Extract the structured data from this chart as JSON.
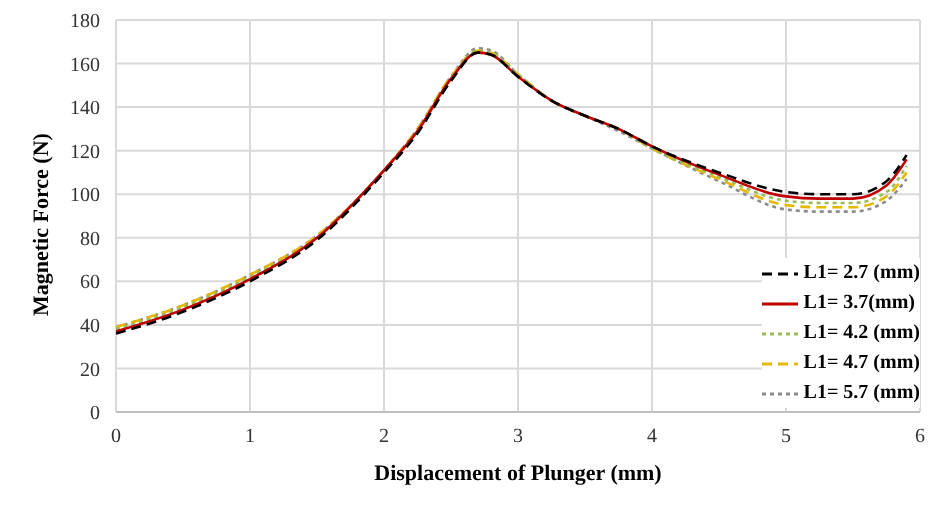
{
  "chart_data": {
    "type": "line",
    "xlabel": "Displacement of Plunger (mm)",
    "ylabel": "Magnetic Force (N)",
    "x": [
      0,
      0.5,
      1,
      1.5,
      2,
      2.25,
      2.5,
      2.7,
      2.8,
      3,
      3.25,
      3.5,
      3.75,
      4,
      4.5,
      5,
      5.25,
      5.5,
      5.75,
      5.9
    ],
    "xlim": [
      0,
      6
    ],
    "xticks": [
      0,
      1,
      2,
      3,
      4,
      5,
      6
    ],
    "ylim": [
      0,
      180
    ],
    "yticks": [
      0,
      20,
      40,
      60,
      80,
      100,
      120,
      140,
      160,
      180
    ],
    "grid": true,
    "legend": "bottom right",
    "marker": "none",
    "series": [
      {
        "name": "L1= 2.7 (mm)",
        "color": "#000000",
        "line_style": "dashed",
        "values": [
          36,
          46,
          60,
          79,
          110,
          128,
          152,
          165,
          164,
          154,
          143,
          136,
          130,
          122,
          110,
          101,
          100,
          100,
          106,
          118
        ]
      },
      {
        "name": "L1= 3.7(mm)",
        "color": "#c00000",
        "line_style": "solid",
        "values": [
          37,
          47,
          61,
          80,
          111,
          129,
          153,
          165,
          164,
          154,
          143,
          136,
          130,
          122,
          109,
          99,
          98,
          98,
          104,
          116
        ]
      },
      {
        "name": "L1= 4.2 (mm)",
        "color": "#9bbb59",
        "line_style": "dotted",
        "values": [
          38,
          48,
          62,
          80,
          111,
          129,
          153,
          166,
          165,
          155,
          143,
          136,
          130,
          121,
          108,
          97,
          96,
          96,
          101,
          113
        ]
      },
      {
        "name": "L1= 4.7 (mm)",
        "color": "#e6b800",
        "line_style": "dashed",
        "values": [
          39,
          49,
          63,
          81,
          111,
          130,
          154,
          166,
          165,
          155,
          143,
          136,
          130,
          121,
          107,
          95,
          94,
          94,
          99,
          110
        ]
      },
      {
        "name": "L1= 5.7 (mm)",
        "color": "#8c8c8c",
        "line_style": "dotted",
        "values": [
          39,
          49,
          63,
          81,
          111,
          130,
          154,
          167,
          166,
          155,
          143,
          136,
          129,
          121,
          106,
          93,
          92,
          92,
          97,
          107
        ]
      }
    ]
  }
}
